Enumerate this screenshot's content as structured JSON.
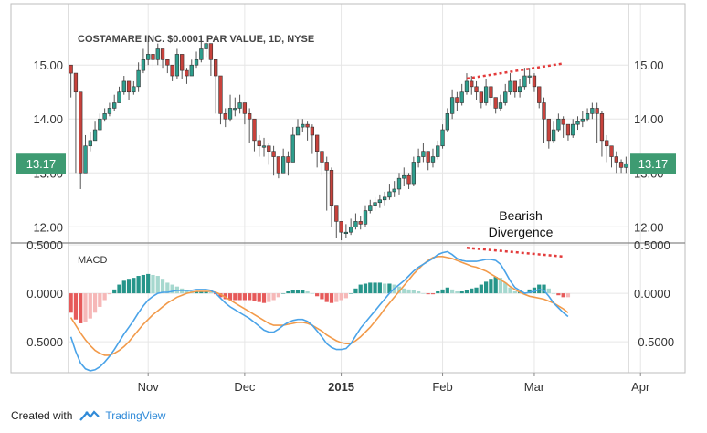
{
  "footer": {
    "created_with": "Created with",
    "brand": "TradingView"
  },
  "colors": {
    "up": "#2e9e8d",
    "down": "#c8423c",
    "price_badge": "#3e9b72",
    "macd_line": "#4aa3e8",
    "signal_line": "#f29a4a",
    "hist_pos_strong": "#26958a",
    "hist_pos_weak": "#a6d8cf",
    "hist_neg_strong": "#e65a5a",
    "hist_neg_weak": "#f6b8b8",
    "divergence": "#e33b3b",
    "grid": "#e6e6e6"
  },
  "chart_data": [
    {
      "type": "candlestick",
      "title": "COSTAMARE INC. $0.0001 PAR VALUE, 1D, NYSE",
      "ylim": [
        11.7,
        15.8
      ],
      "y_ticks": [
        "12.00",
        "13.00",
        "14.00",
        "15.00"
      ],
      "last_price": "13.17",
      "x_ticks": [
        "Nov",
        "Dec",
        "2015",
        "Feb",
        "Mar",
        "Apr"
      ],
      "x_tick_index": [
        16,
        36,
        56,
        77,
        96,
        118
      ],
      "annotation": [
        "Bearish",
        "Divergence"
      ],
      "divergence_line": [
        [
          82,
          14.75
        ],
        [
          102,
          15.03
        ]
      ],
      "closes": [
        14.85,
        14.5,
        13.0,
        13.5,
        13.6,
        13.8,
        14.0,
        14.1,
        14.2,
        14.3,
        14.5,
        14.7,
        14.5,
        14.6,
        14.9,
        15.1,
        15.2,
        15.1,
        15.3,
        15.1,
        15.0,
        14.8,
        15.2,
        14.9,
        14.8,
        15.0,
        15.1,
        15.3,
        15.4,
        15.1,
        14.8,
        14.1,
        14.0,
        14.2,
        14.2,
        14.3,
        14.1,
        14.0,
        13.6,
        13.5,
        13.5,
        13.4,
        13.3,
        13.0,
        13.3,
        13.2,
        13.7,
        13.85,
        13.9,
        13.85,
        13.7,
        13.4,
        13.2,
        13.05,
        12.4,
        12.1,
        11.9,
        11.9,
        12.0,
        12.1,
        12.05,
        12.3,
        12.4,
        12.45,
        12.5,
        12.55,
        12.65,
        12.7,
        12.9,
        12.95,
        12.8,
        13.2,
        13.3,
        13.4,
        13.2,
        13.3,
        13.5,
        13.8,
        14.1,
        14.4,
        14.3,
        14.5,
        14.7,
        14.6,
        14.5,
        14.3,
        14.6,
        14.4,
        14.2,
        14.3,
        14.5,
        14.7,
        14.5,
        14.6,
        14.8,
        14.8,
        14.6,
        14.3,
        14.0,
        13.6,
        13.8,
        14.0,
        13.9,
        13.7,
        13.9,
        13.95,
        14.0,
        14.1,
        14.2,
        14.1,
        13.6,
        13.5,
        13.3,
        13.2,
        13.1,
        13.17
      ],
      "highs": [
        14.95,
        14.6,
        13.6,
        13.7,
        13.75,
        13.95,
        14.1,
        14.2,
        14.3,
        14.45,
        14.6,
        14.8,
        14.7,
        14.7,
        15.05,
        15.3,
        15.45,
        15.2,
        15.4,
        15.3,
        15.1,
        15.0,
        15.3,
        15.1,
        14.95,
        15.1,
        15.25,
        15.5,
        15.55,
        15.4,
        15.1,
        14.5,
        14.2,
        14.45,
        14.4,
        14.45,
        14.3,
        14.2,
        13.8,
        13.7,
        13.65,
        13.55,
        13.5,
        13.3,
        13.45,
        13.4,
        13.85,
        14.0,
        14.0,
        13.95,
        13.9,
        13.55,
        13.4,
        13.3,
        13.1,
        12.4,
        12.1,
        12.05,
        12.15,
        12.25,
        12.2,
        12.4,
        12.5,
        12.55,
        12.6,
        12.65,
        12.8,
        12.85,
        13.0,
        13.1,
        13.0,
        13.3,
        13.45,
        13.55,
        13.4,
        13.45,
        13.6,
        13.9,
        14.2,
        14.55,
        14.5,
        14.65,
        14.85,
        14.8,
        14.7,
        14.5,
        14.75,
        14.6,
        14.4,
        14.45,
        14.65,
        14.85,
        14.7,
        14.75,
        14.95,
        14.95,
        14.85,
        14.6,
        14.4,
        13.8,
        13.95,
        14.1,
        14.05,
        13.85,
        14.0,
        14.05,
        14.15,
        14.2,
        14.3,
        14.3,
        14.15,
        13.7,
        13.5,
        13.4,
        13.25,
        13.3
      ],
      "lows": [
        14.4,
        13.0,
        12.7,
        13.0,
        13.4,
        13.6,
        13.8,
        13.95,
        14.05,
        14.15,
        14.3,
        14.45,
        14.35,
        14.45,
        14.5,
        14.85,
        15.0,
        14.95,
        15.0,
        14.95,
        14.85,
        14.7,
        14.75,
        14.75,
        14.65,
        14.8,
        14.95,
        15.05,
        15.15,
        14.8,
        14.1,
        13.9,
        13.85,
        13.95,
        14.05,
        14.1,
        13.9,
        13.55,
        13.4,
        13.3,
        13.3,
        13.15,
        12.95,
        12.9,
        13.0,
        12.95,
        13.2,
        13.7,
        13.75,
        13.6,
        13.35,
        13.1,
        12.95,
        12.3,
        12.0,
        11.8,
        11.75,
        11.8,
        11.85,
        11.95,
        11.95,
        12.0,
        12.25,
        12.3,
        12.35,
        12.4,
        12.5,
        12.55,
        12.6,
        12.75,
        12.7,
        12.75,
        13.1,
        13.2,
        13.05,
        13.1,
        13.25,
        13.45,
        13.75,
        14.0,
        14.15,
        14.25,
        14.45,
        14.45,
        14.35,
        14.2,
        14.25,
        14.25,
        14.1,
        14.15,
        14.25,
        14.45,
        14.4,
        14.4,
        14.55,
        14.65,
        14.5,
        14.2,
        13.55,
        13.45,
        13.55,
        13.75,
        13.65,
        13.6,
        13.65,
        13.8,
        13.85,
        13.95,
        14.0,
        13.55,
        13.3,
        13.2,
        13.1,
        13.0,
        13.0,
        13.0
      ]
    },
    {
      "type": "macd",
      "title": "MACD",
      "ylim": [
        -0.82,
        0.52
      ],
      "y_ticks": [
        "0.5000",
        "0.0000",
        "-0.5000"
      ],
      "annotation": "",
      "divergence_line": [
        [
          82,
          0.47
        ],
        [
          102,
          0.38
        ]
      ],
      "macd": [
        -0.45,
        -0.6,
        -0.72,
        -0.78,
        -0.8,
        -0.79,
        -0.76,
        -0.71,
        -0.65,
        -0.58,
        -0.5,
        -0.42,
        -0.35,
        -0.28,
        -0.2,
        -0.13,
        -0.07,
        -0.03,
        0.0,
        0.01,
        0.01,
        0.02,
        0.03,
        0.03,
        0.03,
        0.03,
        0.04,
        0.04,
        0.04,
        0.03,
        0.0,
        -0.05,
        -0.1,
        -0.14,
        -0.17,
        -0.2,
        -0.23,
        -0.26,
        -0.3,
        -0.34,
        -0.38,
        -0.4,
        -0.4,
        -0.37,
        -0.33,
        -0.3,
        -0.28,
        -0.27,
        -0.27,
        -0.29,
        -0.33,
        -0.39,
        -0.45,
        -0.52,
        -0.56,
        -0.58,
        -0.58,
        -0.57,
        -0.52,
        -0.44,
        -0.36,
        -0.3,
        -0.24,
        -0.18,
        -0.12,
        -0.06,
        0.0,
        0.05,
        0.09,
        0.13,
        0.18,
        0.23,
        0.27,
        0.3,
        0.33,
        0.36,
        0.4,
        0.42,
        0.43,
        0.4,
        0.36,
        0.34,
        0.33,
        0.33,
        0.33,
        0.34,
        0.35,
        0.35,
        0.34,
        0.3,
        0.22,
        0.13,
        0.06,
        0.03,
        0.0,
        0.01,
        0.02,
        0.04,
        0.03,
        -0.03,
        -0.1,
        -0.15,
        -0.2,
        -0.24
      ],
      "signal": [
        -0.25,
        -0.33,
        -0.41,
        -0.48,
        -0.54,
        -0.59,
        -0.62,
        -0.64,
        -0.64,
        -0.62,
        -0.59,
        -0.55,
        -0.5,
        -0.44,
        -0.38,
        -0.32,
        -0.27,
        -0.22,
        -0.18,
        -0.14,
        -0.1,
        -0.07,
        -0.04,
        -0.02,
        0.0,
        0.01,
        0.02,
        0.02,
        0.02,
        0.02,
        0.01,
        -0.01,
        -0.04,
        -0.07,
        -0.1,
        -0.13,
        -0.16,
        -0.19,
        -0.22,
        -0.25,
        -0.28,
        -0.31,
        -0.33,
        -0.33,
        -0.33,
        -0.32,
        -0.31,
        -0.3,
        -0.3,
        -0.31,
        -0.33,
        -0.36,
        -0.39,
        -0.43,
        -0.46,
        -0.49,
        -0.51,
        -0.52,
        -0.52,
        -0.49,
        -0.45,
        -0.4,
        -0.35,
        -0.29,
        -0.23,
        -0.16,
        -0.1,
        -0.04,
        0.02,
        0.08,
        0.14,
        0.2,
        0.25,
        0.3,
        0.34,
        0.37,
        0.38,
        0.38,
        0.37,
        0.36,
        0.34,
        0.32,
        0.3,
        0.28,
        0.27,
        0.25,
        0.23,
        0.2,
        0.17,
        0.14,
        0.11,
        0.07,
        0.04,
        0.01,
        -0.01,
        -0.03,
        -0.04,
        -0.05,
        -0.06,
        -0.08,
        -0.1,
        -0.13,
        -0.16,
        -0.2
      ]
    }
  ]
}
